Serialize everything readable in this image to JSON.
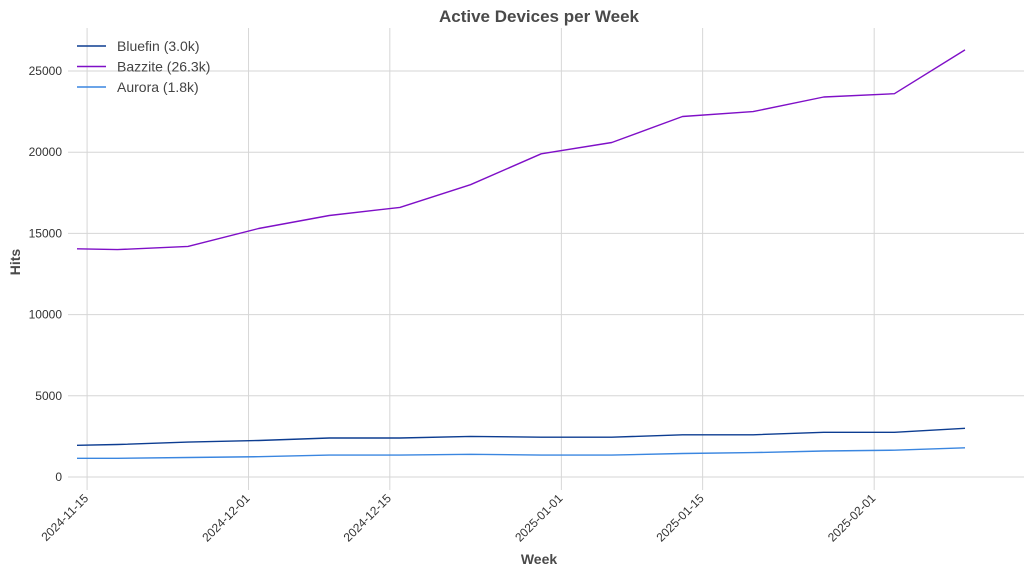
{
  "chart_data": {
    "type": "line",
    "title": "Active Devices per Week",
    "xlabel": "Week",
    "ylabel": "Hits",
    "x": [
      "2024-11-14",
      "2024-11-18",
      "2024-11-25",
      "2024-12-02",
      "2024-12-09",
      "2024-12-16",
      "2024-12-23",
      "2024-12-30",
      "2025-01-06",
      "2025-01-13",
      "2025-01-20",
      "2025-01-27",
      "2025-02-03",
      "2025-02-10"
    ],
    "xticks": [
      "2024-11-15",
      "2024-12-01",
      "2024-12-15",
      "2025-01-01",
      "2025-01-15",
      "2025-02-01"
    ],
    "xlim": [
      "2024-11-14",
      "2025-02-10"
    ],
    "yticks": [
      0,
      5000,
      10000,
      15000,
      20000,
      25000
    ],
    "ylim": [
      -800,
      27600
    ],
    "grid": true,
    "legend_position": "top-left",
    "series": [
      {
        "name": "Bluefin (3.0k)",
        "color": "#0d3d91",
        "values": [
          1950,
          2000,
          2150,
          2250,
          2400,
          2400,
          2500,
          2450,
          2450,
          2600,
          2600,
          2750,
          2750,
          3000
        ]
      },
      {
        "name": "Bazzite (26.3k)",
        "color": "#7f0fc7",
        "values": [
          14050,
          14000,
          14200,
          15300,
          16100,
          16600,
          18000,
          19900,
          20600,
          22200,
          22500,
          23400,
          23600,
          26300
        ]
      },
      {
        "name": "Aurora (1.8k)",
        "color": "#3a86e0",
        "values": [
          1150,
          1150,
          1200,
          1250,
          1350,
          1350,
          1400,
          1350,
          1350,
          1450,
          1500,
          1600,
          1650,
          1800
        ]
      }
    ]
  }
}
